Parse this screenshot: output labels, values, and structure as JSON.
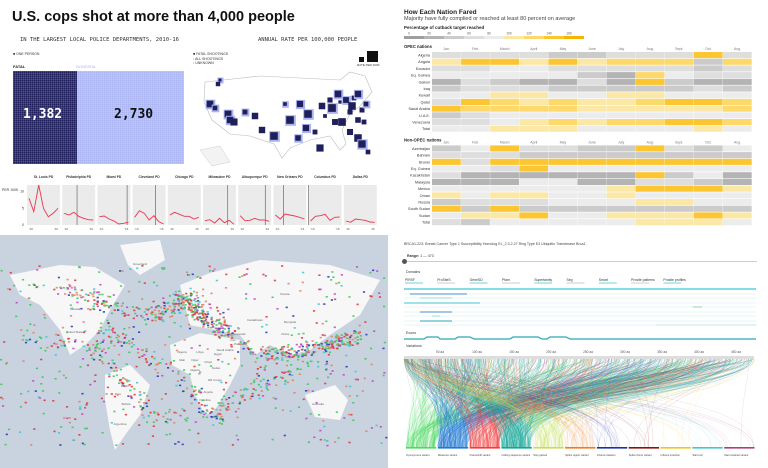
{
  "police": {
    "title": "U.S. cops shot at more than 4,000 people",
    "subtitle_left": "IN THE LARGEST LOCAL POLICE DEPARTMENTS, 2010-16",
    "subtitle_right": "ANNUAL RATE PER 100,000 PEOPLE",
    "legend_one_person": "ONE PERSON",
    "fatal_label": "FATAL",
    "nonfatal_label": "NONFATAL",
    "fatal_value": "1,382",
    "nonfatal_value": "2,730",
    "map_legend": [
      "FATAL SHOOTINGS",
      "ALL SHOOTINGS",
      "UNKNOWN"
    ],
    "rate_per_100k": "RATE PER 100K",
    "colors": {
      "fatal": "#1f1f5c",
      "nonfatal": "#aab4f0",
      "line": "#e8384f"
    }
  },
  "heatmap": {
    "title": "How Each Nation Fared",
    "subtitle": "Majority have fully complied or reached at least 80 percent on average",
    "legend_title": "Percentage of cutback target reached",
    "legend_ticks": [
      "0",
      "20",
      "40",
      "60",
      "80",
      "100",
      "120",
      "140",
      "160"
    ],
    "group_opec": "OPEC nations",
    "group_nonopec": "Non-OPEC nations"
  },
  "map": {
    "labels": [
      "Greenland",
      "Canada",
      "United States",
      "Brazil",
      "Russia",
      "Kazakhstan",
      "Mongolia",
      "China",
      "India",
      "Algeria",
      "Libya",
      "Egypt",
      "Mali",
      "Niger",
      "Chad",
      "Sudan",
      "Nigeria",
      "DR Congo",
      "Angola",
      "Namibia",
      "Australia",
      "Iran",
      "Pakistan",
      "Afghanistan",
      "Saudi Arabia",
      "Peru",
      "Bolivia",
      "Argentina"
    ],
    "colors": {
      "sea": "#c9d3e0",
      "land": "#f7f7f7"
    }
  },
  "variants": {
    "title": "BRCA1-223: Breast Cancer Type 1 Susceptibility Homolog EL_2.3.2.27 Ring Type E3 Ubiquitin Transferase Brca1",
    "range_label": "Range:",
    "range_value": "1 — 473",
    "domains_label": "Domains",
    "domains": [
      "PIRSF",
      "ProSiteS",
      "GeneSD",
      "Pfam",
      "Superfamily",
      "Seg",
      "Smart",
      "Prosite patterns",
      "Prosite profiles"
    ],
    "exons_label": "Exons",
    "variations_label": "Variations"
  },
  "chart_data": [
    {
      "type": "bar",
      "title": "U.S. cops shot at more than 4,000 people",
      "categories": [
        "FATAL",
        "NONFATAL"
      ],
      "values": [
        1382,
        2730
      ]
    },
    {
      "type": "line",
      "ylabel": "PER 100K",
      "yticks": [
        "0",
        "5",
        "10"
      ],
      "ylim": [
        0,
        12
      ],
      "xticks": [
        "'10",
        "'16"
      ],
      "x": [
        2010,
        2011,
        2012,
        2013,
        2014,
        2015,
        2016
      ],
      "series": [
        {
          "name": "St. Louis PD",
          "values": [
            8,
            4,
            12,
            5,
            2.5,
            3.5,
            5
          ]
        },
        {
          "name": "Philadelphia PD",
          "values": [
            3.5,
            3,
            3.8,
            2.6,
            2,
            1.6,
            1.5
          ]
        },
        {
          "name": "Miami PD",
          "values": [
            2.5,
            2.7,
            1.8,
            1.2,
            0.3,
            0.5,
            0.8
          ]
        },
        {
          "name": "Cleveland PD",
          "values": [
            2.3,
            4.3,
            3.5,
            1.5,
            2.8,
            1,
            0.3
          ]
        },
        {
          "name": "Chicago PD",
          "values": [
            3,
            3.8,
            3.2,
            2.6,
            2.6,
            1.8,
            2.3
          ]
        },
        {
          "name": "Milwaukee PD",
          "values": [
            1.3,
            1.6,
            0.6,
            2,
            0.7,
            1.4,
            0.2
          ]
        },
        {
          "name": "Albuquerque PD",
          "values": [
            2.8,
            1.3,
            1.4,
            2,
            1.5,
            1.5,
            1.1
          ]
        },
        {
          "name": "New Orleans PD",
          "values": [
            3,
            1.8,
            3.3,
            3,
            2.7,
            2.3,
            1.8
          ]
        },
        {
          "name": "Columbus PD",
          "values": [
            1.2,
            2.6,
            2.8,
            3.2,
            1.4,
            2.3,
            2.4
          ]
        },
        {
          "name": "Dallas PD",
          "values": [
            1.2,
            0.8,
            1.8,
            1.6,
            1.4,
            0.9,
            0.8
          ]
        }
      ]
    },
    {
      "type": "heatmap",
      "title": "How Each Nation Fared",
      "columns": [
        "Jan.",
        "Feb.",
        "March",
        "April",
        "May",
        "June",
        "July",
        "Aug.",
        "Sept.",
        "Oct.",
        "Avg."
      ],
      "groups": [
        {
          "name": "OPEC nations",
          "rows": [
            {
              "name": "Algeria",
              "values": [
                70,
                70,
                70,
                70,
                50,
                50,
                70,
                70,
                70,
                150,
                70
              ]
            },
            {
              "name": "Angola",
              "values": [
                110,
                140,
                150,
                110,
                150,
                110,
                130,
                130,
                130,
                50,
                130
              ]
            },
            {
              "name": "Ecuador",
              "values": [
                70,
                70,
                90,
                90,
                70,
                70,
                70,
                70,
                70,
                50,
                70
              ]
            },
            {
              "name": "Eq. Guinea",
              "values": [
                90,
                90,
                90,
                90,
                90,
                40,
                30,
                120,
                90,
                70,
                70
              ]
            },
            {
              "name": "Gabon",
              "values": [
                30,
                60,
                40,
                30,
                30,
                60,
                30,
                150,
                40,
                30,
                30
              ]
            },
            {
              "name": "Iraq",
              "values": [
                50,
                70,
                70,
                70,
                50,
                40,
                50,
                50,
                40,
                70,
                50
              ]
            },
            {
              "name": "Kuwait",
              "values": [
                90,
                90,
                110,
                110,
                90,
                90,
                110,
                110,
                90,
                90,
                90
              ]
            },
            {
              "name": "Qatar",
              "values": [
                70,
                150,
                120,
                110,
                120,
                110,
                110,
                120,
                140,
                150,
                130
              ]
            },
            {
              "name": "Saudi Arabia",
              "values": [
                140,
                120,
                120,
                120,
                120,
                110,
                110,
                110,
                110,
                110,
                130
              ]
            },
            {
              "name": "U.A.E.",
              "values": [
                50,
                60,
                80,
                80,
                80,
                80,
                80,
                80,
                80,
                80,
                80
              ]
            },
            {
              "name": "Venezuela",
              "values": [
                70,
                70,
                90,
                110,
                120,
                110,
                120,
                130,
                150,
                150,
                120
              ]
            },
            {
              "name": "Total",
              "values": [
                80,
                80,
                110,
                110,
                110,
                90,
                90,
                90,
                90,
                110,
                90
              ]
            }
          ]
        },
        {
          "name": "Non-OPEC nations",
          "rows": [
            {
              "name": "Azerbaijan",
              "values": [
                50,
                80,
                150,
                70,
                70,
                50,
                50,
                150,
                70,
                50,
                80
              ]
            },
            {
              "name": "Bahrain",
              "values": [
                70,
                70,
                70,
                50,
                50,
                50,
                50,
                50,
                50,
                50,
                50
              ]
            },
            {
              "name": "Brunei",
              "values": [
                150,
                70,
                150,
                150,
                150,
                150,
                150,
                150,
                150,
                150,
                150
              ]
            },
            {
              "name": "Eq. Guinea",
              "values": [
                90,
                90,
                60,
                140,
                80,
                90,
                90,
                90,
                90,
                90,
                90
              ]
            },
            {
              "name": "Kazakhstan",
              "values": [
                70,
                30,
                30,
                30,
                30,
                30,
                30,
                150,
                40,
                80,
                30
              ]
            },
            {
              "name": "Malaysia",
              "values": [
                30,
                30,
                30,
                80,
                80,
                30,
                30,
                70,
                70,
                40,
                30
              ]
            },
            {
              "name": "Mexico",
              "values": [
                80,
                80,
                80,
                80,
                80,
                80,
                110,
                150,
                150,
                150,
                110
              ]
            },
            {
              "name": "Oman",
              "values": [
                110,
                80,
                110,
                110,
                90,
                90,
                110,
                80,
                80,
                80,
                80
              ]
            },
            {
              "name": "Russia",
              "values": [
                50,
                60,
                60,
                70,
                80,
                80,
                80,
                110,
                110,
                80,
                80
              ]
            },
            {
              "name": "South Sudan",
              "values": [
                150,
                40,
                150,
                50,
                40,
                40,
                40,
                40,
                40,
                40,
                40
              ]
            },
            {
              "name": "Sudan",
              "values": [
                80,
                110,
                110,
                140,
                80,
                80,
                110,
                110,
                110,
                140,
                110
              ]
            },
            {
              "name": "Total",
              "values": [
                70,
                50,
                80,
                80,
                80,
                80,
                90,
                110,
                110,
                110,
                90
              ]
            }
          ]
        }
      ]
    },
    {
      "type": "arc",
      "xticks": [
        "50 aa",
        "100 aa",
        "150 aa",
        "200 aa",
        "250 aa",
        "300 aa",
        "350 aa",
        "400 aa",
        "450 aa"
      ],
      "xlim": [
        1,
        473
      ],
      "categories": [
        {
          "name": "Synonymous variant",
          "color": "#4cd964"
        },
        {
          "name": "Missense variant",
          "color": "#1f78d1"
        },
        {
          "name": "Frameshift variant",
          "color": "#f23c3c"
        },
        {
          "name": "Coding sequence variant",
          "color": "#14a596"
        },
        {
          "name": "Stop gained",
          "color": "#c4de5a"
        },
        {
          "name": "Splice region variant",
          "color": "#f07a22"
        },
        {
          "name": "Inframe deletion",
          "color": "#1b2fa8"
        },
        {
          "name": "Splice donor variant",
          "color": "#8e0e0e"
        },
        {
          "name": "Inframe insertion",
          "color": "#f4c41c"
        },
        {
          "name": "Start lost",
          "color": "#3fc7d5"
        },
        {
          "name": "Start retained variant",
          "color": "#a8407c"
        }
      ]
    }
  ]
}
